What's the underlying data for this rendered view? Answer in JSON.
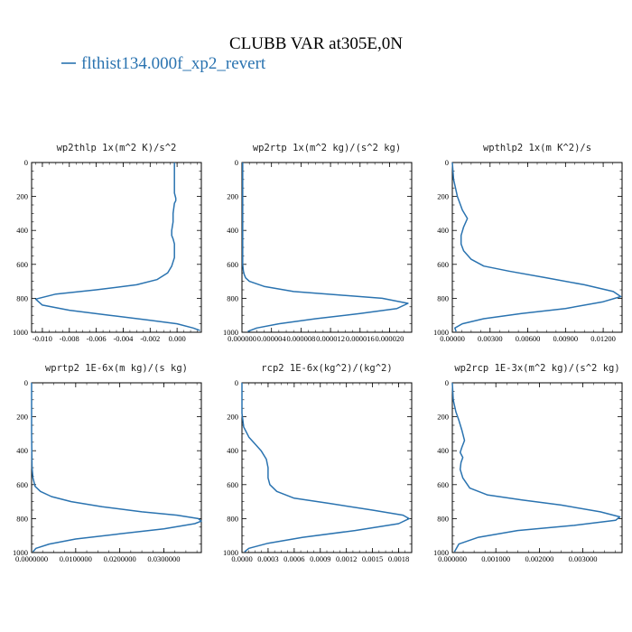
{
  "figure": {
    "title": "CLUBB VAR at305E,0N",
    "legend": [
      {
        "label": "flthist134.000f_xp2_revert",
        "color": "#2a73b0"
      }
    ]
  },
  "chart_data": [
    {
      "type": "line",
      "title": "wp2thlp  1x(m^2 K)/s^2",
      "xlim": [
        -0.0108,
        0.0018
      ],
      "xticks": [
        -0.01,
        -0.008,
        -0.006,
        -0.004,
        -0.002,
        0.0
      ],
      "xtick_labels": [
        "-0.010",
        "-0.008",
        "-0.006",
        "-0.004",
        "-0.002",
        "0.000"
      ],
      "ylim": [
        1000,
        0
      ],
      "yticks": [
        0,
        200,
        400,
        600,
        800,
        1000
      ],
      "ytick_labels": [
        "0",
        "200",
        "400",
        "600",
        "800",
        "1000"
      ],
      "series": [
        {
          "color": "#2a73b0",
          "x": [
            -0.0002,
            -0.0002,
            -0.0002,
            -0.0001,
            -0.0001,
            -0.0002,
            -0.0003,
            -0.0003,
            -0.0004,
            -0.0004,
            -0.0003,
            -0.0002,
            -0.0002,
            -0.0002,
            -0.0004,
            -0.0007,
            -0.0015,
            -0.003,
            -0.006,
            -0.009,
            -0.0105,
            -0.01,
            -0.008,
            -0.005,
            -0.002,
            0.0,
            0.0012,
            0.0017
          ],
          "y": [
            0,
            100,
            180,
            210,
            225,
            240,
            300,
            350,
            400,
            430,
            450,
            480,
            520,
            560,
            610,
            650,
            690,
            720,
            750,
            775,
            805,
            840,
            870,
            900,
            930,
            950,
            975,
            990
          ]
        }
      ]
    },
    {
      "type": "line",
      "title": "wp2rtp  1x(m^2 kg)/(s^2 kg)",
      "xlim": [
        0,
        2.3e-05
      ],
      "xticks": [
        0,
        4e-06,
        8e-06,
        1.2e-05,
        1.6e-05,
        2e-05
      ],
      "xtick_labels": [
        "0.000000",
        "0.000004",
        "0.000008",
        "0.000012",
        "0.000016",
        "0.000020"
      ],
      "ylim": [
        1000,
        0
      ],
      "yticks": [
        0,
        200,
        400,
        600,
        800,
        1000
      ],
      "ytick_labels": [
        "0",
        "200",
        "400",
        "600",
        "800",
        "1000"
      ],
      "series": [
        {
          "color": "#2a73b0",
          "x": [
            1e-07,
            1e-07,
            1e-07,
            1e-07,
            2e-07,
            3e-07,
            5e-07,
            1e-06,
            3e-06,
            7e-06,
            1.3e-05,
            1.9e-05,
            2.25e-05,
            2.1e-05,
            1.6e-05,
            1e-05,
            5e-06,
            2e-06,
            8e-07
          ],
          "y": [
            0,
            200,
            400,
            600,
            640,
            660,
            680,
            700,
            730,
            760,
            780,
            800,
            830,
            860,
            890,
            920,
            950,
            975,
            995
          ]
        }
      ]
    },
    {
      "type": "line",
      "title": "wpthlp2  1x(m K^2)/s",
      "xlim": [
        0,
        0.0135
      ],
      "xticks": [
        0,
        0.003,
        0.006,
        0.009,
        0.012
      ],
      "xtick_labels": [
        "0.00000",
        "0.00300",
        "0.00600",
        "0.00900",
        "0.01200"
      ],
      "ylim": [
        1000,
        0
      ],
      "yticks": [
        0,
        200,
        400,
        600,
        800,
        1000
      ],
      "ytick_labels": [
        "0",
        "200",
        "400",
        "600",
        "800",
        "1000"
      ],
      "series": [
        {
          "color": "#2a73b0",
          "x": [
            0.0,
            0.0001,
            0.0004,
            0.0008,
            0.0012,
            0.0009,
            0.0007,
            0.0007,
            0.0009,
            0.0015,
            0.0025,
            0.0045,
            0.0075,
            0.0105,
            0.0128,
            0.0134,
            0.012,
            0.009,
            0.0055,
            0.0025,
            0.0008,
            0.0002,
            0.0003
          ],
          "y": [
            0,
            100,
            200,
            280,
            330,
            380,
            430,
            480,
            520,
            570,
            610,
            640,
            680,
            720,
            760,
            790,
            820,
            860,
            890,
            920,
            950,
            975,
            995
          ]
        }
      ]
    },
    {
      "type": "line",
      "title": "wprtp2  1E-6x(m kg)/(s kg)",
      "xlim": [
        0,
        0.0385
      ],
      "xticks": [
        0,
        0.01,
        0.02,
        0.03
      ],
      "xtick_labels": [
        "0.0000000",
        "0.0100000",
        "0.0200000",
        "0.0300000"
      ],
      "ylim": [
        1000,
        0
      ],
      "yticks": [
        0,
        200,
        400,
        600,
        800,
        1000
      ],
      "ytick_labels": [
        "0",
        "200",
        "400",
        "600",
        "800",
        "1000"
      ],
      "series": [
        {
          "color": "#2a73b0",
          "x": [
            0.0,
            0.0,
            0.0001,
            0.0003,
            0.0008,
            0.002,
            0.0045,
            0.009,
            0.016,
            0.025,
            0.033,
            0.0378,
            0.0385,
            0.037,
            0.03,
            0.02,
            0.01,
            0.004,
            0.001,
            0.0003
          ],
          "y": [
            0,
            300,
            500,
            560,
            610,
            640,
            670,
            700,
            730,
            760,
            780,
            800,
            815,
            830,
            860,
            890,
            920,
            950,
            975,
            995
          ]
        }
      ]
    },
    {
      "type": "line",
      "title": "rcp2  1E-6x(kg^2)/(kg^2)",
      "xlim": [
        0,
        0.00195
      ],
      "xticks": [
        0,
        0.0003,
        0.0006,
        0.0009,
        0.0012,
        0.0015,
        0.0018
      ],
      "xtick_labels": [
        "0.0000",
        "0.0003",
        "0.0006",
        "0.0009",
        "0.0012",
        "0.0015",
        "0.0018"
      ],
      "ylim": [
        1000,
        0
      ],
      "yticks": [
        0,
        200,
        400,
        600,
        800,
        1000
      ],
      "ytick_labels": [
        "0",
        "200",
        "400",
        "600",
        "800",
        "1000"
      ],
      "series": [
        {
          "color": "#2a73b0",
          "x": [
            0.0,
            0.0,
            2e-05,
            8e-05,
            0.00015,
            0.00022,
            0.00028,
            0.0003,
            0.0003,
            0.00032,
            0.0004,
            0.0006,
            0.001,
            0.0015,
            0.00185,
            0.00192,
            0.0018,
            0.0013,
            0.0007,
            0.0003,
            8e-05,
            3e-05
          ],
          "y": [
            0,
            180,
            260,
            320,
            360,
            400,
            450,
            500,
            560,
            600,
            640,
            680,
            710,
            750,
            780,
            800,
            830,
            870,
            910,
            945,
            975,
            995
          ]
        }
      ]
    },
    {
      "type": "line",
      "title": "wp2rcp  1E-3x(m^2 kg)/(s^2 kg)",
      "xlim": [
        0,
        0.0039
      ],
      "xticks": [
        0,
        0.001,
        0.002,
        0.003
      ],
      "xtick_labels": [
        "0.000000",
        "0.001000",
        "0.002000",
        "0.003000"
      ],
      "ylim": [
        1000,
        0
      ],
      "yticks": [
        0,
        200,
        400,
        600,
        800,
        1000
      ],
      "ytick_labels": [
        "0",
        "200",
        "400",
        "600",
        "800",
        "1000"
      ],
      "series": [
        {
          "color": "#2a73b0",
          "x": [
            0.0,
            2e-05,
            8e-05,
            0.00015,
            0.00022,
            0.00028,
            0.00022,
            0.00018,
            0.00024,
            0.0002,
            0.00018,
            0.00024,
            0.0004,
            0.0008,
            0.0016,
            0.0025,
            0.0034,
            0.00385,
            0.00375,
            0.0028,
            0.0015,
            0.0006,
            0.00015,
            5e-05
          ],
          "y": [
            0,
            100,
            170,
            220,
            280,
            340,
            380,
            410,
            440,
            470,
            510,
            560,
            620,
            660,
            690,
            720,
            760,
            790,
            810,
            840,
            870,
            910,
            950,
            995
          ]
        }
      ]
    }
  ]
}
